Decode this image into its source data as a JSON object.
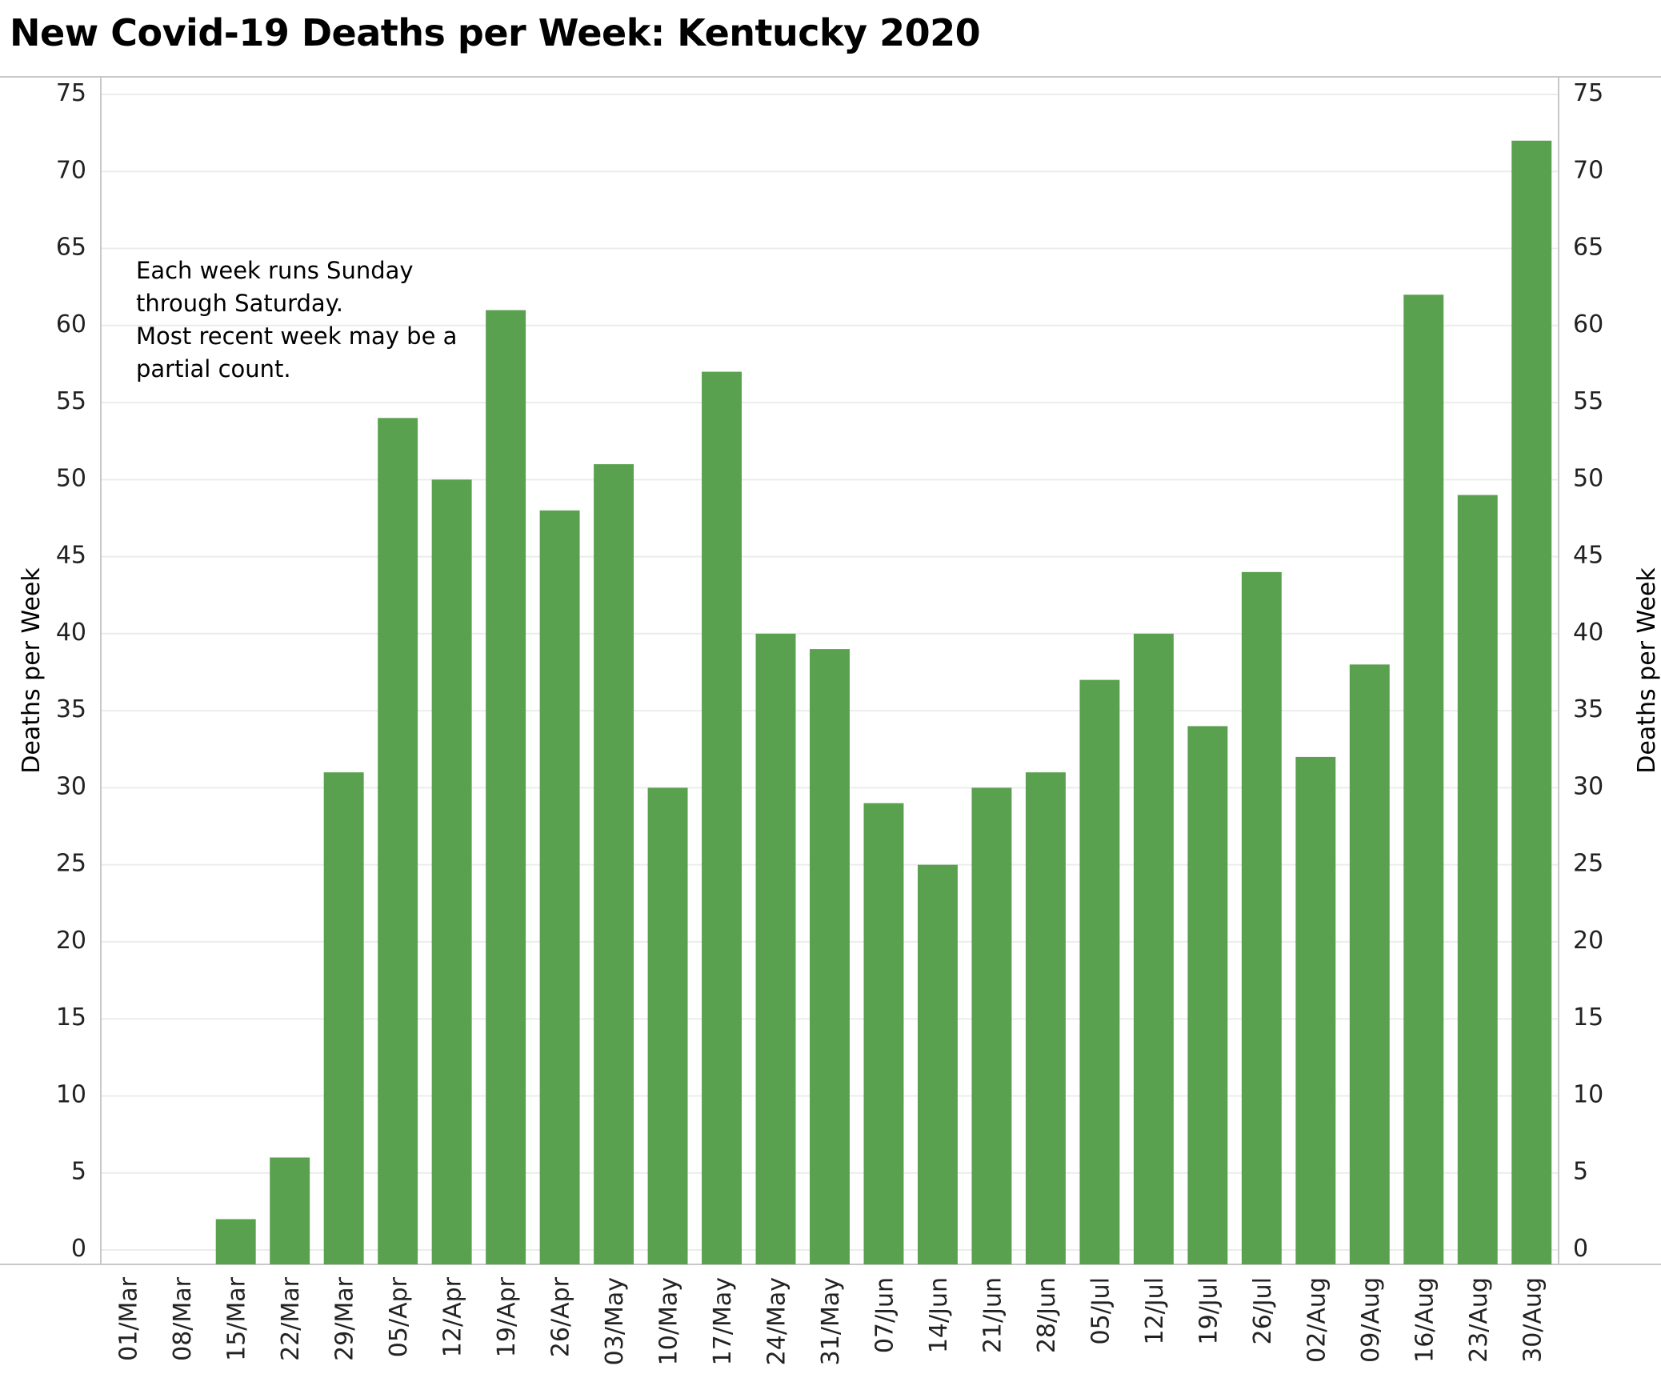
{
  "chart_data": {
    "type": "bar",
    "title": "New Covid-19 Deaths per Week:  Kentucky 2020",
    "ylabel": "Deaths per Week",
    "ylabel_right": "Deaths per Week",
    "xlabel": "",
    "ylim": [
      0,
      75
    ],
    "yticks": [
      "0",
      "5",
      "10",
      "15",
      "20",
      "25",
      "30",
      "35",
      "40",
      "45",
      "50",
      "55",
      "60",
      "65",
      "70",
      "75"
    ],
    "grid": true,
    "bar_color": "#59A14F",
    "categories": [
      "01/Mar",
      "08/Mar",
      "15/Mar",
      "22/Mar",
      "29/Mar",
      "05/Apr",
      "12/Apr",
      "19/Apr",
      "26/Apr",
      "03/May",
      "10/May",
      "17/May",
      "24/May",
      "31/May",
      "07/Jun",
      "14/Jun",
      "21/Jun",
      "28/Jun",
      "05/Jul",
      "12/Jul",
      "19/Jul",
      "26/Jul",
      "02/Aug",
      "09/Aug",
      "16/Aug",
      "23/Aug",
      "30/Aug"
    ],
    "values": [
      0,
      0,
      2,
      6,
      31,
      54,
      50,
      61,
      48,
      51,
      30,
      57,
      40,
      39,
      29,
      25,
      30,
      31,
      37,
      40,
      34,
      44,
      32,
      38,
      62,
      49,
      72
    ],
    "annotation": [
      "Each week runs Sunday",
      "through Saturday.",
      "Most recent week may be a",
      "partial count."
    ]
  }
}
